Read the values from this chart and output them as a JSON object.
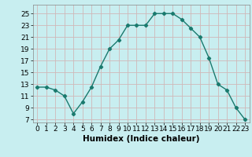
{
  "x": [
    0,
    1,
    2,
    3,
    4,
    5,
    6,
    7,
    8,
    9,
    10,
    11,
    12,
    13,
    14,
    15,
    16,
    17,
    18,
    19,
    20,
    21,
    22,
    23
  ],
  "y": [
    12.5,
    12.5,
    12.0,
    11.0,
    8.0,
    10.0,
    12.5,
    16.0,
    19.0,
    20.5,
    23.0,
    23.0,
    23.0,
    25.0,
    25.0,
    25.0,
    24.0,
    22.5,
    21.0,
    17.5,
    13.0,
    12.0,
    9.0,
    7.0
  ],
  "line_color": "#1a7a6e",
  "marker": "D",
  "marker_size": 2.2,
  "bg_color": "#c8eef0",
  "grid_color": "#d0b8b8",
  "xlabel": "Humidex (Indice chaleur)",
  "xlabel_fontsize": 7.5,
  "yticks": [
    7,
    9,
    11,
    13,
    15,
    17,
    19,
    21,
    23,
    25
  ],
  "xticks": [
    0,
    1,
    2,
    3,
    4,
    5,
    6,
    7,
    8,
    9,
    10,
    11,
    12,
    13,
    14,
    15,
    16,
    17,
    18,
    19,
    20,
    21,
    22,
    23
  ],
  "ylim": [
    6.5,
    26.5
  ],
  "xlim": [
    -0.5,
    23.5
  ],
  "tick_fontsize": 6.5,
  "spine_color": "#888888"
}
